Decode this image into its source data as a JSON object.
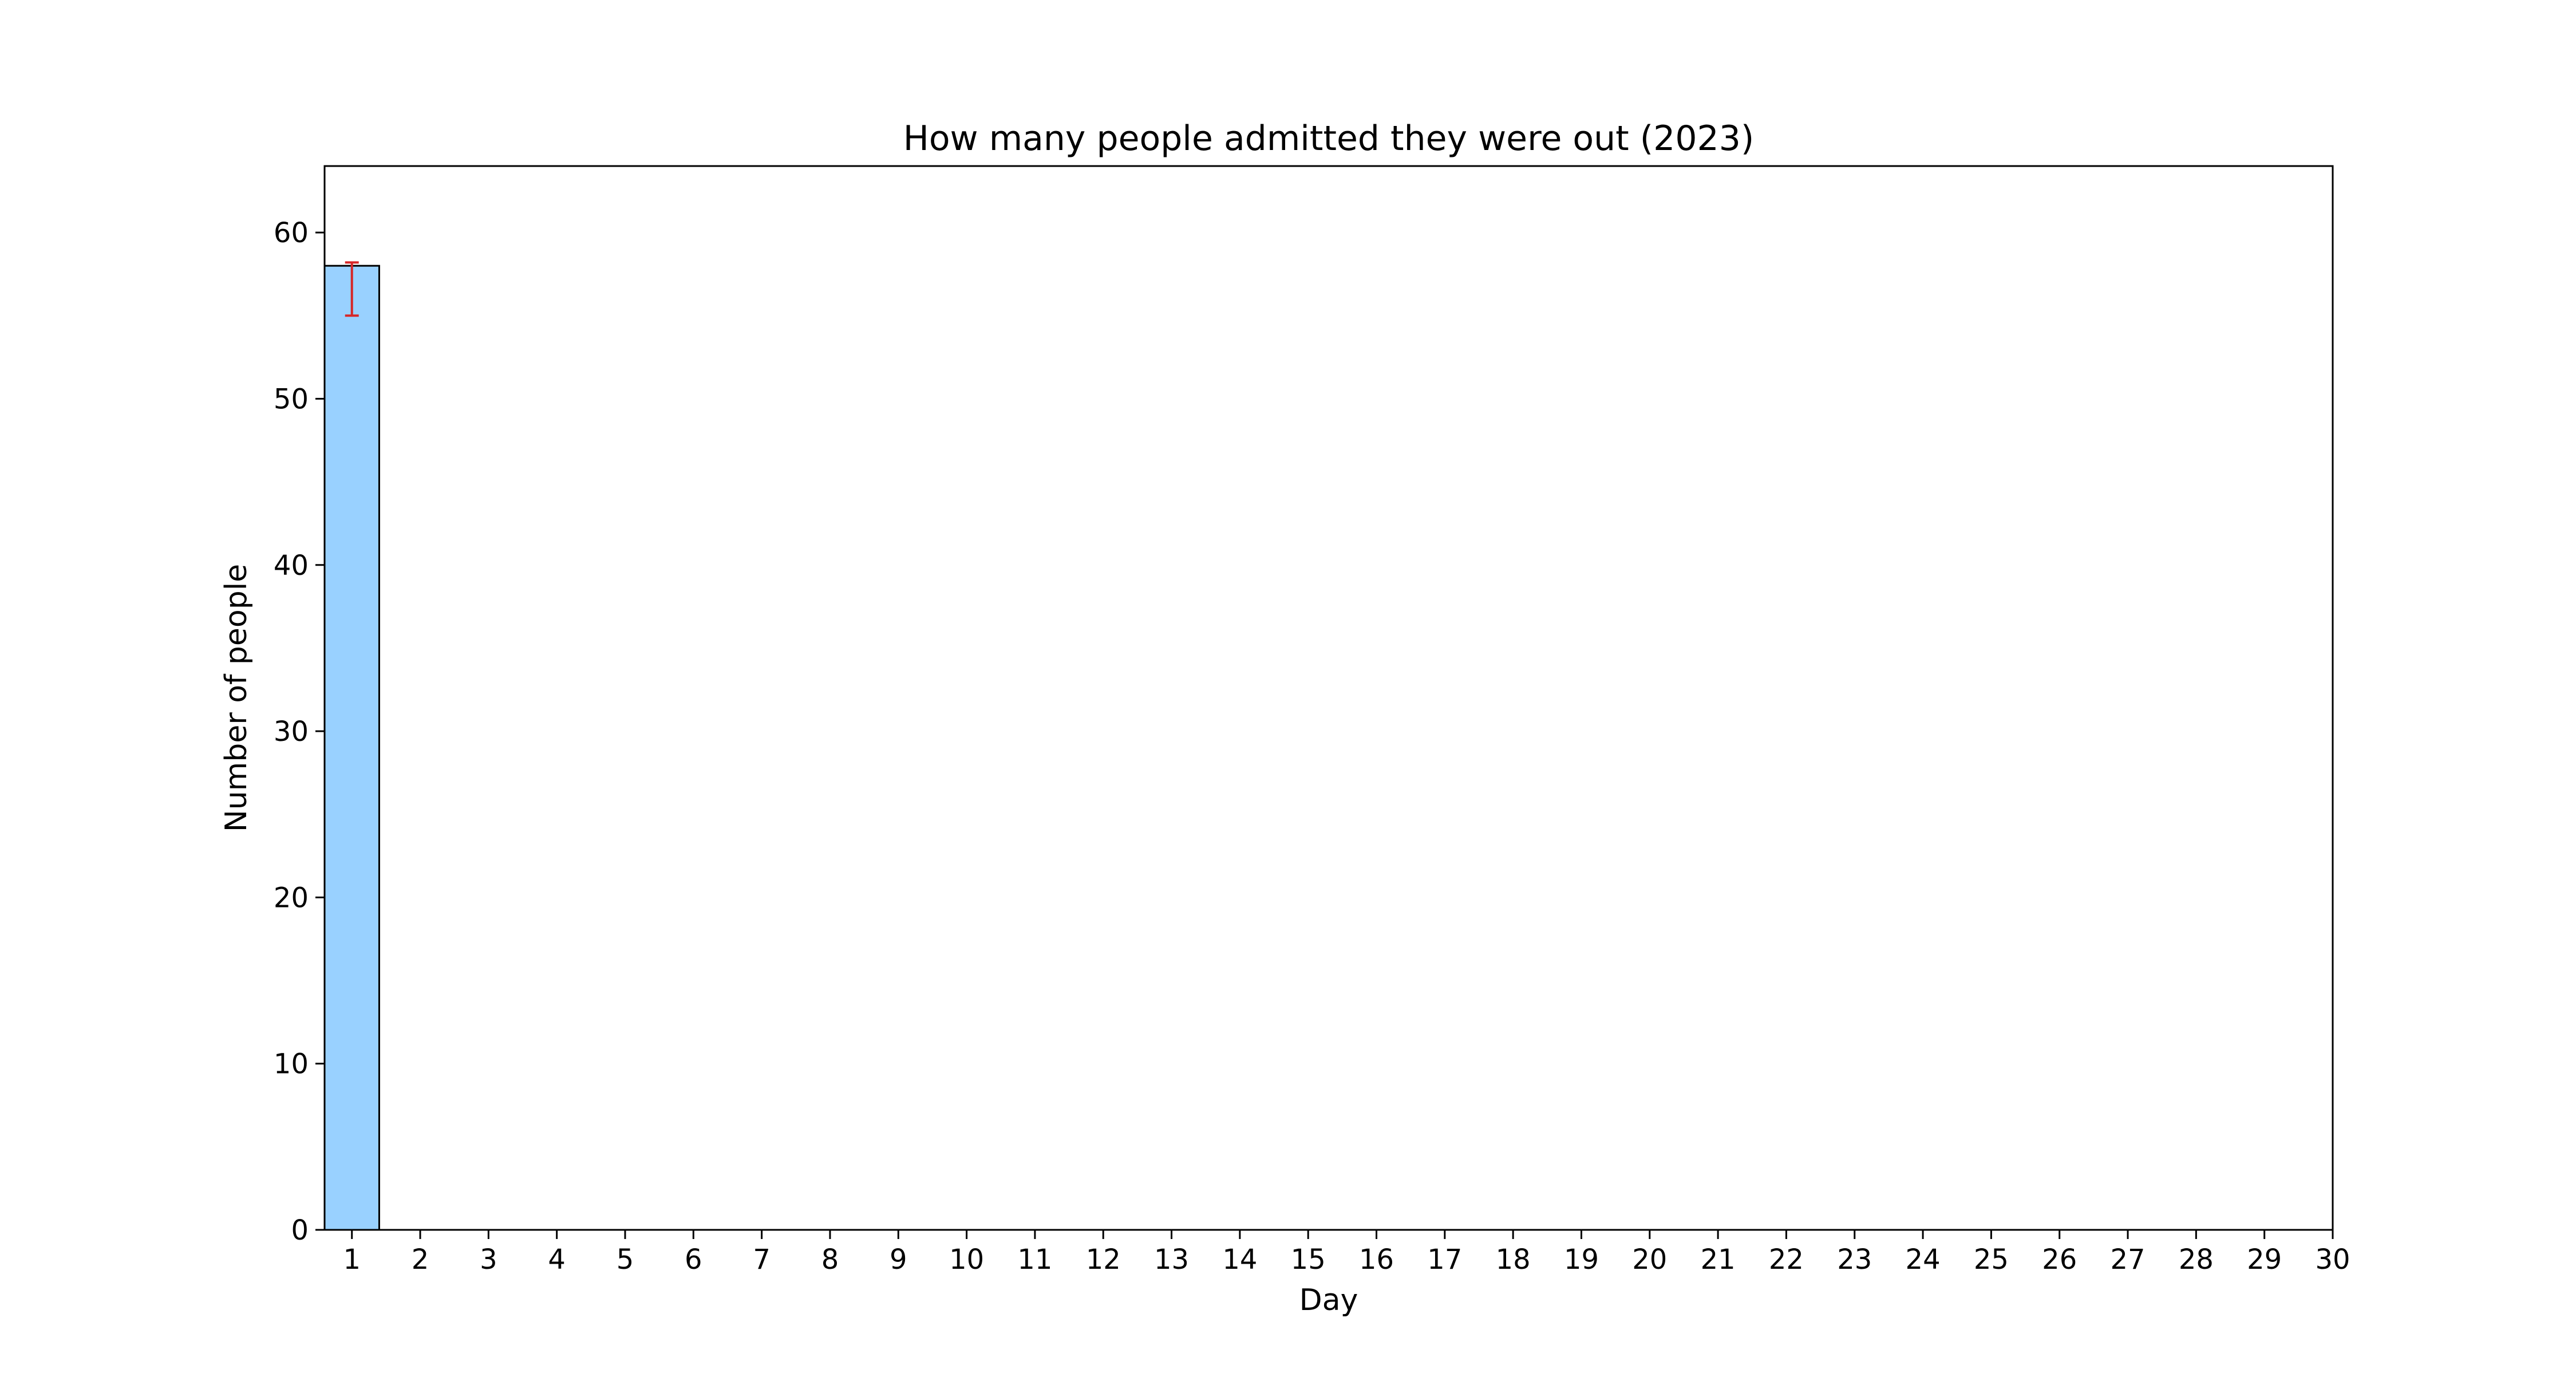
{
  "chart_data": {
    "type": "bar",
    "title": "How many people admitted they were out (2023)",
    "xlabel": "Day",
    "ylabel": "Number of people",
    "categories": [
      "1",
      "2",
      "3",
      "4",
      "5",
      "6",
      "7",
      "8",
      "9",
      "10",
      "11",
      "12",
      "13",
      "14",
      "15",
      "16",
      "17",
      "18",
      "19",
      "20",
      "21",
      "22",
      "23",
      "24",
      "25",
      "26",
      "27",
      "28",
      "29",
      "30"
    ],
    "values": [
      58,
      0,
      0,
      0,
      0,
      0,
      0,
      0,
      0,
      0,
      0,
      0,
      0,
      0,
      0,
      0,
      0,
      0,
      0,
      0,
      0,
      0,
      0,
      0,
      0,
      0,
      0,
      0,
      0,
      0
    ],
    "error": [
      {
        "category": "1",
        "low": 55,
        "high": 58.2
      }
    ],
    "yticks": [
      0,
      10,
      20,
      30,
      40,
      50,
      60
    ],
    "ylim": [
      0,
      64
    ],
    "xlim": [
      0.6,
      30
    ],
    "grid": false,
    "legend": "none",
    "colors": {
      "bar_fill": "#99d1ff",
      "bar_edge": "#000000",
      "error_bar": "#d62728",
      "axes": "#000000"
    }
  }
}
